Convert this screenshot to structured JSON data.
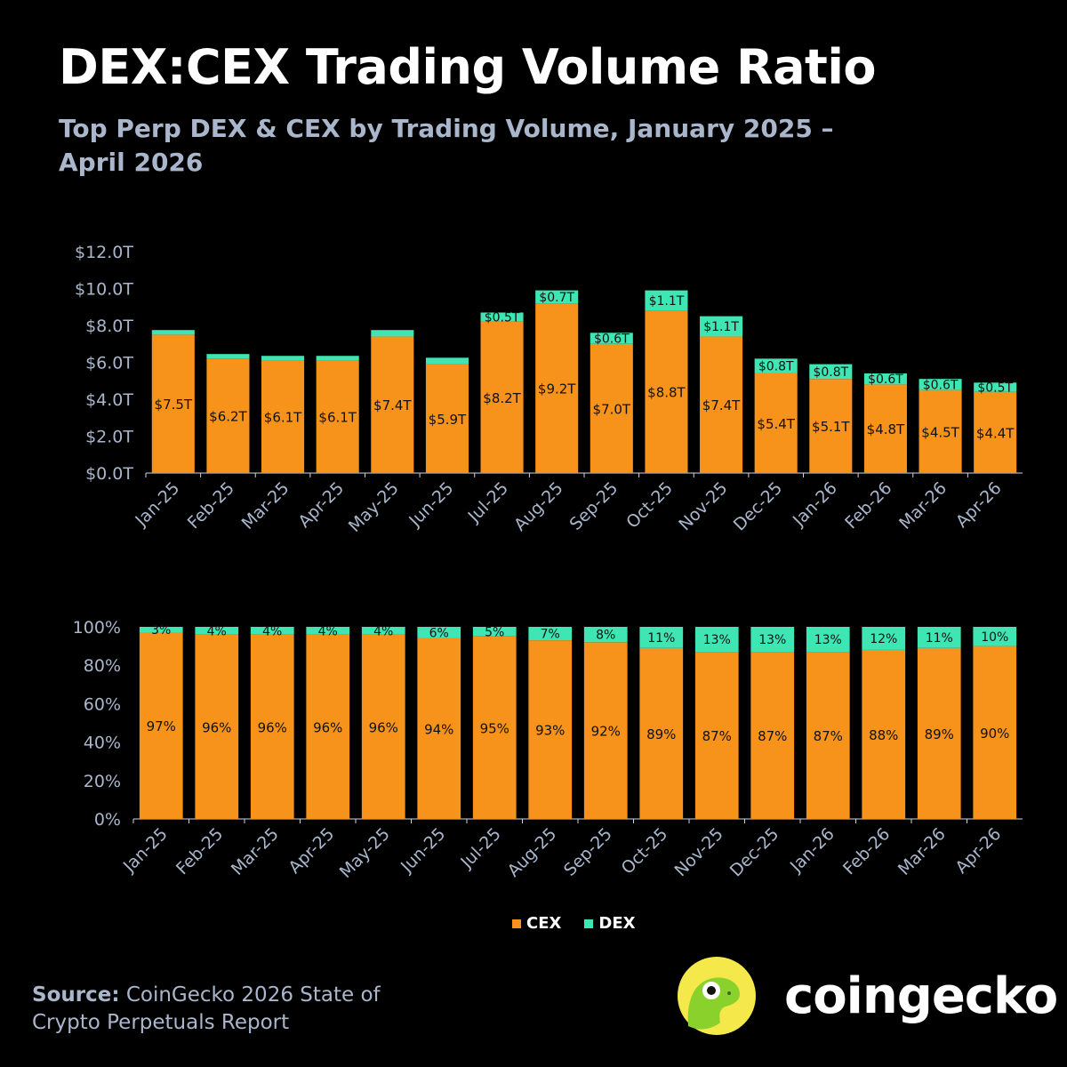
{
  "title": "DEX:CEX Trading Volume Ratio",
  "subtitle": "Top Perp DEX & CEX by Trading Volume, January 2025 – April 2026",
  "colors": {
    "cex": "#f7931a",
    "dex": "#3ee6b4",
    "text": "#ffffff",
    "muted": "#a9b6cc",
    "background": "#000000"
  },
  "legend": {
    "cex": "CEX",
    "dex": "DEX"
  },
  "source": {
    "label": "Source:",
    "text": "CoinGecko 2026 State of Crypto Perpetuals Report"
  },
  "brand": {
    "name": "coingecko",
    "logo_icon": "gecko-logo-icon"
  },
  "chart_data": [
    {
      "type": "bar",
      "stacked": true,
      "categories": [
        "Jan-25",
        "Feb-25",
        "Mar-25",
        "Apr-25",
        "May-25",
        "Jun-25",
        "Jul-25",
        "Aug-25",
        "Sep-25",
        "Oct-25",
        "Nov-25",
        "Dec-25",
        "Jan-26",
        "Feb-26",
        "Mar-26",
        "Apr-26"
      ],
      "series": [
        {
          "name": "CEX",
          "values": [
            7.5,
            6.2,
            6.1,
            6.1,
            7.4,
            5.9,
            8.2,
            9.2,
            7.0,
            8.8,
            7.4,
            5.4,
            5.1,
            4.8,
            4.5,
            4.4
          ],
          "labels": [
            "$7.5T",
            "$6.2T",
            "$6.1T",
            "$6.1T",
            "$7.4T",
            "$5.9T",
            "$8.2T",
            "$9.2T",
            "$7.0T",
            "$8.8T",
            "$7.4T",
            "$5.4T",
            "$5.1T",
            "$4.8T",
            "$4.5T",
            "$4.4T"
          ]
        },
        {
          "name": "DEX",
          "values": [
            0.25,
            0.25,
            0.25,
            0.25,
            0.35,
            0.35,
            0.5,
            0.7,
            0.6,
            1.1,
            1.1,
            0.8,
            0.8,
            0.6,
            0.6,
            0.5
          ],
          "labels": [
            "",
            "",
            "",
            "",
            "",
            "",
            "$0.5T",
            "$0.7T",
            "$0.6T",
            "$1.1T",
            "$1.1T",
            "$0.8T",
            "$0.8T",
            "$0.6T",
            "$0.6T",
            "$0.5T"
          ]
        }
      ],
      "y_ticks": [
        "$0.0T",
        "$2.0T",
        "$4.0T",
        "$6.0T",
        "$8.0T",
        "$10.0T",
        "$12.0T"
      ],
      "ylim": [
        0,
        12
      ],
      "grid": false
    },
    {
      "type": "bar",
      "stacked": true,
      "percent": true,
      "categories": [
        "Jan-25",
        "Feb-25",
        "Mar-25",
        "Apr-25",
        "May-25",
        "Jun-25",
        "Jul-25",
        "Aug-25",
        "Sep-25",
        "Oct-25",
        "Nov-25",
        "Dec-25",
        "Jan-26",
        "Feb-26",
        "Mar-26",
        "Apr-26"
      ],
      "series": [
        {
          "name": "CEX",
          "values": [
            97,
            96,
            96,
            96,
            96,
            94,
            95,
            93,
            92,
            89,
            87,
            87,
            87,
            88,
            89,
            90
          ],
          "labels": [
            "97%",
            "96%",
            "96%",
            "96%",
            "96%",
            "94%",
            "95%",
            "93%",
            "92%",
            "89%",
            "87%",
            "87%",
            "87%",
            "88%",
            "89%",
            "90%"
          ]
        },
        {
          "name": "DEX",
          "values": [
            3,
            4,
            4,
            4,
            4,
            6,
            5,
            7,
            8,
            11,
            13,
            13,
            13,
            12,
            11,
            10
          ],
          "labels": [
            "3%",
            "4%",
            "4%",
            "4%",
            "4%",
            "6%",
            "5%",
            "7%",
            "8%",
            "11%",
            "13%",
            "13%",
            "13%",
            "12%",
            "11%",
            "10%"
          ]
        }
      ],
      "y_ticks": [
        "0%",
        "20%",
        "40%",
        "60%",
        "80%",
        "100%"
      ],
      "ylim": [
        0,
        100
      ],
      "grid": false,
      "legend_position": "bottom"
    }
  ]
}
